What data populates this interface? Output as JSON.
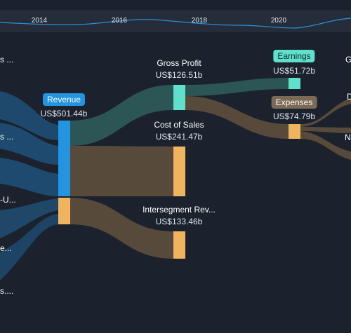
{
  "timeline": {
    "years": [
      "2014",
      "2016",
      "2018",
      "2020"
    ]
  },
  "nodes": {
    "revenue": {
      "label": "Revenue",
      "value": "US$501.44b"
    },
    "gross_profit": {
      "label": "Gross Profit",
      "value": "US$126.51b"
    },
    "cost_of_sales": {
      "label": "Cost of Sales",
      "value": "US$241.47b"
    },
    "intersegment": {
      "label": "Intersegment Rev...",
      "value": "US$133.46b"
    },
    "earnings": {
      "label": "Earnings",
      "value": "US$51.72b"
    },
    "expenses": {
      "label": "Expenses",
      "value": "US$74.79b"
    }
  },
  "left_labels": [
    "s ...",
    "s ...",
    "-U...",
    "e...",
    "s...."
  ],
  "right_labels": [
    "G",
    "D",
    "N"
  ],
  "colors": {
    "background": "#1b222d",
    "revenue": "#2394e0",
    "gross_profit": "#5ee0cc",
    "cost": "#f0b45f",
    "flow_blue": "#1f4d73",
    "flow_teal": "#2e5c5a",
    "flow_brown": "#574a3a"
  }
}
